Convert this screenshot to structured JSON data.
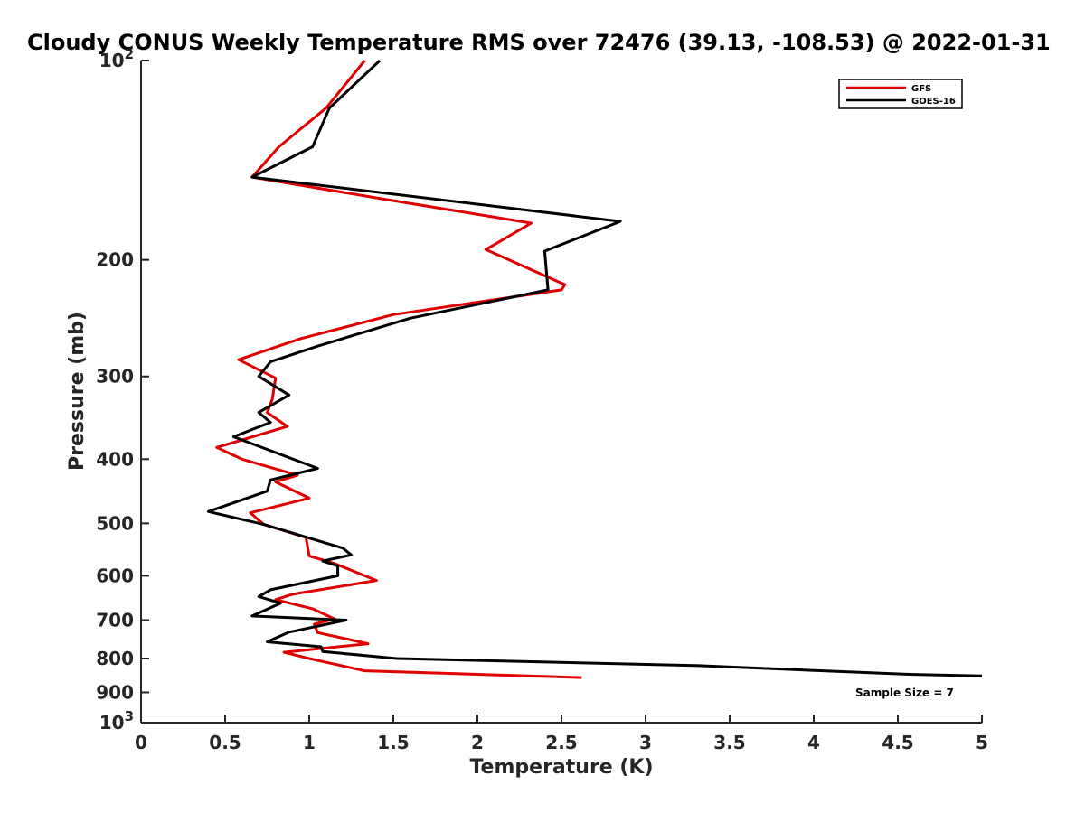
{
  "chart_data": {
    "type": "line",
    "title": "Cloudy CONUS Weekly Temperature RMS over 72476 (39.13, -108.53) @ 2022-01-31",
    "xlabel": "Temperature (K)",
    "ylabel": "Pressure (mb)",
    "xlim": [
      0,
      5
    ],
    "ylim": [
      100,
      1000
    ],
    "yscale": "log",
    "y_reversed": true,
    "xticks": [
      "0",
      "0.5",
      "1",
      "1.5",
      "2",
      "2.5",
      "3",
      "3.5",
      "4",
      "4.5",
      "5"
    ],
    "yticks": [
      {
        "value": 100,
        "base": "10",
        "exp": "2"
      },
      {
        "value": 200,
        "label": "200"
      },
      {
        "value": 300,
        "label": "300"
      },
      {
        "value": 400,
        "label": "400"
      },
      {
        "value": 500,
        "label": "500"
      },
      {
        "value": 600,
        "label": "600"
      },
      {
        "value": 700,
        "label": "700"
      },
      {
        "value": 800,
        "label": "800"
      },
      {
        "value": 900,
        "label": "900"
      },
      {
        "value": 1000,
        "base": "10",
        "exp": "3"
      }
    ],
    "grid": false,
    "legend_placement": "top-right",
    "annotation": "Sample Size = 7",
    "series": [
      {
        "name": "GFS",
        "color": "#e00000",
        "points": [
          [
            1.33,
            100
          ],
          [
            1.1,
            118
          ],
          [
            0.82,
            135
          ],
          [
            0.66,
            150
          ],
          [
            1.45,
            162
          ],
          [
            2.32,
            176
          ],
          [
            2.05,
            193
          ],
          [
            2.52,
            218
          ],
          [
            2.5,
            222
          ],
          [
            1.5,
            242
          ],
          [
            0.95,
            263
          ],
          [
            0.58,
            283
          ],
          [
            0.78,
            300
          ],
          [
            0.8,
            302
          ],
          [
            0.78,
            325
          ],
          [
            0.75,
            340
          ],
          [
            0.87,
            357
          ],
          [
            0.45,
            384
          ],
          [
            0.6,
            400
          ],
          [
            0.93,
            423
          ],
          [
            0.8,
            433
          ],
          [
            1.0,
            458
          ],
          [
            0.65,
            482
          ],
          [
            0.73,
            502
          ],
          [
            0.98,
            525
          ],
          [
            1.0,
            560
          ],
          [
            1.15,
            575
          ],
          [
            1.4,
            610
          ],
          [
            0.9,
            640
          ],
          [
            0.8,
            652
          ],
          [
            1.02,
            673
          ],
          [
            1.15,
            697
          ],
          [
            1.03,
            710
          ],
          [
            1.05,
            731
          ],
          [
            1.35,
            760
          ],
          [
            0.85,
            783
          ],
          [
            1.0,
            800
          ],
          [
            1.33,
            835
          ],
          [
            2.62,
            855
          ]
        ]
      },
      {
        "name": "GOES-16",
        "color": "#000000",
        "points": [
          [
            1.42,
            100
          ],
          [
            1.12,
            118
          ],
          [
            1.02,
            135
          ],
          [
            0.66,
            150
          ],
          [
            2.85,
            175
          ],
          [
            2.4,
            194
          ],
          [
            2.42,
            222
          ],
          [
            1.6,
            245
          ],
          [
            1.05,
            270
          ],
          [
            0.77,
            285
          ],
          [
            0.7,
            300
          ],
          [
            0.88,
            320
          ],
          [
            0.7,
            340
          ],
          [
            0.77,
            352
          ],
          [
            0.55,
            370
          ],
          [
            1.05,
            413
          ],
          [
            0.77,
            430
          ],
          [
            0.75,
            447
          ],
          [
            0.4,
            480
          ],
          [
            0.73,
            502
          ],
          [
            1.2,
            545
          ],
          [
            1.25,
            558
          ],
          [
            1.08,
            570
          ],
          [
            1.17,
            580
          ],
          [
            1.17,
            600
          ],
          [
            0.77,
            630
          ],
          [
            0.7,
            645
          ],
          [
            0.83,
            660
          ],
          [
            0.66,
            690
          ],
          [
            1.22,
            700
          ],
          [
            0.88,
            730
          ],
          [
            0.75,
            755
          ],
          [
            1.07,
            768
          ],
          [
            1.08,
            781
          ],
          [
            1.52,
            800
          ],
          [
            3.3,
            820
          ],
          [
            4.55,
            845
          ],
          [
            5.0,
            850
          ]
        ]
      }
    ]
  }
}
